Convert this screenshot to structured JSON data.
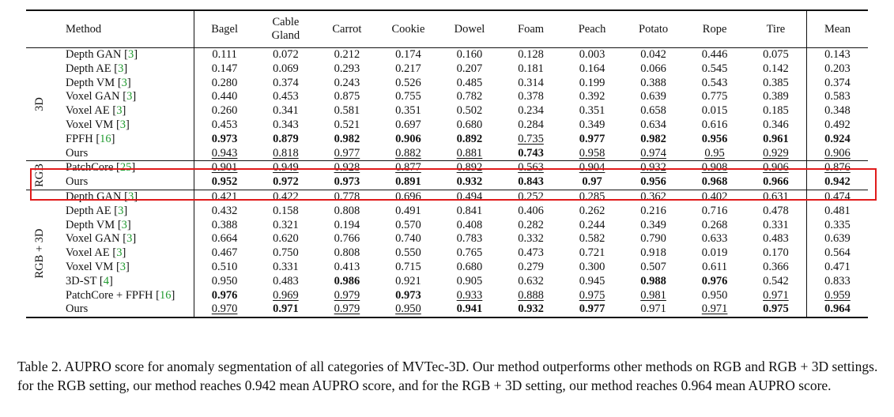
{
  "columns": [
    "Method",
    "Bagel",
    "Cable Gland",
    "Carrot",
    "Cookie",
    "Dowel",
    "Foam",
    "Peach",
    "Potato",
    "Rope",
    "Tire",
    "Mean"
  ],
  "sections": [
    {
      "label": "3D",
      "rows": [
        {
          "method": "Depth GAN",
          "cite": "3",
          "values": [
            {
              "v": "0.111"
            },
            {
              "v": "0.072"
            },
            {
              "v": "0.212"
            },
            {
              "v": "0.174"
            },
            {
              "v": "0.160"
            },
            {
              "v": "0.128"
            },
            {
              "v": "0.003"
            },
            {
              "v": "0.042"
            },
            {
              "v": "0.446"
            },
            {
              "v": "0.075"
            },
            {
              "v": "0.143"
            }
          ]
        },
        {
          "method": "Depth AE",
          "cite": "3",
          "values": [
            {
              "v": "0.147"
            },
            {
              "v": "0.069"
            },
            {
              "v": "0.293"
            },
            {
              "v": "0.217"
            },
            {
              "v": "0.207"
            },
            {
              "v": "0.181"
            },
            {
              "v": "0.164"
            },
            {
              "v": "0.066"
            },
            {
              "v": "0.545"
            },
            {
              "v": "0.142"
            },
            {
              "v": "0.203"
            }
          ]
        },
        {
          "method": "Depth VM",
          "cite": "3",
          "values": [
            {
              "v": "0.280"
            },
            {
              "v": "0.374"
            },
            {
              "v": "0.243"
            },
            {
              "v": "0.526"
            },
            {
              "v": "0.485"
            },
            {
              "v": "0.314"
            },
            {
              "v": "0.199"
            },
            {
              "v": "0.388"
            },
            {
              "v": "0.543"
            },
            {
              "v": "0.385"
            },
            {
              "v": "0.374"
            }
          ]
        },
        {
          "method": "Voxel GAN",
          "cite": "3",
          "values": [
            {
              "v": "0.440"
            },
            {
              "v": "0.453"
            },
            {
              "v": "0.875"
            },
            {
              "v": "0.755"
            },
            {
              "v": "0.782"
            },
            {
              "v": "0.378"
            },
            {
              "v": "0.392"
            },
            {
              "v": "0.639"
            },
            {
              "v": "0.775"
            },
            {
              "v": "0.389"
            },
            {
              "v": "0.583"
            }
          ]
        },
        {
          "method": "Voxel AE",
          "cite": "3",
          "values": [
            {
              "v": "0.260"
            },
            {
              "v": "0.341"
            },
            {
              "v": "0.581"
            },
            {
              "v": "0.351"
            },
            {
              "v": "0.502"
            },
            {
              "v": "0.234"
            },
            {
              "v": "0.351"
            },
            {
              "v": "0.658"
            },
            {
              "v": "0.015"
            },
            {
              "v": "0.185"
            },
            {
              "v": "0.348"
            }
          ]
        },
        {
          "method": "Voxel VM",
          "cite": "3",
          "values": [
            {
              "v": "0.453"
            },
            {
              "v": "0.343"
            },
            {
              "v": "0.521"
            },
            {
              "v": "0.697"
            },
            {
              "v": "0.680"
            },
            {
              "v": "0.284"
            },
            {
              "v": "0.349"
            },
            {
              "v": "0.634"
            },
            {
              "v": "0.616"
            },
            {
              "v": "0.346"
            },
            {
              "v": "0.492"
            }
          ]
        },
        {
          "method": "FPFH",
          "cite": "16",
          "values": [
            {
              "v": "0.973",
              "b": true
            },
            {
              "v": "0.879",
              "b": true
            },
            {
              "v": "0.982",
              "b": true
            },
            {
              "v": "0.906",
              "b": true
            },
            {
              "v": "0.892",
              "b": true
            },
            {
              "v": "0.735",
              "u": true
            },
            {
              "v": "0.977",
              "b": true
            },
            {
              "v": "0.982",
              "b": true
            },
            {
              "v": "0.956",
              "b": true
            },
            {
              "v": "0.961",
              "b": true
            },
            {
              "v": "0.924",
              "b": true
            }
          ]
        },
        {
          "method": "Ours",
          "cite": "",
          "values": [
            {
              "v": "0.943",
              "u": true
            },
            {
              "v": "0.818",
              "u": true
            },
            {
              "v": "0.977",
              "u": true
            },
            {
              "v": "0.882",
              "u": true
            },
            {
              "v": "0.881",
              "u": true
            },
            {
              "v": "0.743",
              "b": true
            },
            {
              "v": "0.958",
              "u": true
            },
            {
              "v": "0.974",
              "u": true
            },
            {
              "v": "0.95",
              "u": true
            },
            {
              "v": "0.929",
              "u": true
            },
            {
              "v": "0.906",
              "u": true
            }
          ]
        }
      ]
    },
    {
      "label": "RGB",
      "rows": [
        {
          "method": "PatchCore",
          "cite": "25",
          "values": [
            {
              "v": "0.901",
              "u": true
            },
            {
              "v": "0.949",
              "u": true
            },
            {
              "v": "0.928",
              "u": true
            },
            {
              "v": "0.877",
              "u": true
            },
            {
              "v": "0.892",
              "u": true
            },
            {
              "v": "0.563",
              "u": true
            },
            {
              "v": "0.904",
              "u": true
            },
            {
              "v": "0.932",
              "u": true
            },
            {
              "v": "0.908",
              "u": true
            },
            {
              "v": "0.906",
              "u": true
            },
            {
              "v": "0.876",
              "u": true
            }
          ]
        },
        {
          "method": "Ours",
          "cite": "",
          "values": [
            {
              "v": "0.952",
              "b": true
            },
            {
              "v": "0.972",
              "b": true
            },
            {
              "v": "0.973",
              "b": true
            },
            {
              "v": "0.891",
              "b": true
            },
            {
              "v": "0.932",
              "b": true
            },
            {
              "v": "0.843",
              "b": true
            },
            {
              "v": "0.97",
              "b": true
            },
            {
              "v": "0.956",
              "b": true
            },
            {
              "v": "0.968",
              "b": true
            },
            {
              "v": "0.966",
              "b": true
            },
            {
              "v": "0.942",
              "b": true
            }
          ]
        }
      ]
    },
    {
      "label": "RGB + 3D",
      "rows": [
        {
          "method": "Depth GAN",
          "cite": "3",
          "values": [
            {
              "v": "0.421"
            },
            {
              "v": "0.422"
            },
            {
              "v": "0.778"
            },
            {
              "v": "0.696"
            },
            {
              "v": "0.494"
            },
            {
              "v": "0.252"
            },
            {
              "v": "0.285"
            },
            {
              "v": "0.362"
            },
            {
              "v": "0.402"
            },
            {
              "v": "0.631"
            },
            {
              "v": "0.474"
            }
          ]
        },
        {
          "method": "Depth AE",
          "cite": "3",
          "values": [
            {
              "v": "0.432"
            },
            {
              "v": "0.158"
            },
            {
              "v": "0.808"
            },
            {
              "v": "0.491"
            },
            {
              "v": "0.841"
            },
            {
              "v": "0.406"
            },
            {
              "v": "0.262"
            },
            {
              "v": "0.216"
            },
            {
              "v": "0.716"
            },
            {
              "v": "0.478"
            },
            {
              "v": "0.481"
            }
          ]
        },
        {
          "method": "Depth VM",
          "cite": "3",
          "values": [
            {
              "v": "0.388"
            },
            {
              "v": "0.321"
            },
            {
              "v": "0.194"
            },
            {
              "v": "0.570"
            },
            {
              "v": "0.408"
            },
            {
              "v": "0.282"
            },
            {
              "v": "0.244"
            },
            {
              "v": "0.349"
            },
            {
              "v": "0.268"
            },
            {
              "v": "0.331"
            },
            {
              "v": "0.335"
            }
          ]
        },
        {
          "method": "Voxel GAN",
          "cite": "3",
          "values": [
            {
              "v": "0.664"
            },
            {
              "v": "0.620"
            },
            {
              "v": "0.766"
            },
            {
              "v": "0.740"
            },
            {
              "v": "0.783"
            },
            {
              "v": "0.332"
            },
            {
              "v": "0.582"
            },
            {
              "v": "0.790"
            },
            {
              "v": "0.633"
            },
            {
              "v": "0.483"
            },
            {
              "v": "0.639"
            }
          ]
        },
        {
          "method": "Voxel AE",
          "cite": "3",
          "values": [
            {
              "v": "0.467"
            },
            {
              "v": "0.750"
            },
            {
              "v": "0.808"
            },
            {
              "v": "0.550"
            },
            {
              "v": "0.765"
            },
            {
              "v": "0.473"
            },
            {
              "v": "0.721"
            },
            {
              "v": "0.918"
            },
            {
              "v": "0.019"
            },
            {
              "v": "0.170"
            },
            {
              "v": "0.564"
            }
          ]
        },
        {
          "method": "Voxel VM",
          "cite": "3",
          "values": [
            {
              "v": "0.510"
            },
            {
              "v": "0.331"
            },
            {
              "v": "0.413"
            },
            {
              "v": "0.715"
            },
            {
              "v": "0.680"
            },
            {
              "v": "0.279"
            },
            {
              "v": "0.300"
            },
            {
              "v": "0.507"
            },
            {
              "v": "0.611"
            },
            {
              "v": "0.366"
            },
            {
              "v": "0.471"
            }
          ]
        },
        {
          "method": "3D-ST",
          "cite": "4",
          "values": [
            {
              "v": "0.950"
            },
            {
              "v": "0.483"
            },
            {
              "v": "0.986",
              "b": true
            },
            {
              "v": "0.921"
            },
            {
              "v": "0.905"
            },
            {
              "v": "0.632"
            },
            {
              "v": "0.945"
            },
            {
              "v": "0.988",
              "b": true
            },
            {
              "v": "0.976",
              "b": true
            },
            {
              "v": "0.542"
            },
            {
              "v": "0.833"
            }
          ]
        },
        {
          "method": "PatchCore + FPFH",
          "cite": "16",
          "values": [
            {
              "v": "0.976",
              "b": true
            },
            {
              "v": "0.969",
              "u": true
            },
            {
              "v": "0.979",
              "u": true
            },
            {
              "v": "0.973",
              "b": true
            },
            {
              "v": "0.933",
              "u": true
            },
            {
              "v": "0.888",
              "u": true
            },
            {
              "v": "0.975",
              "u": true
            },
            {
              "v": "0.981",
              "u": true
            },
            {
              "v": "0.950"
            },
            {
              "v": "0.971",
              "u": true
            },
            {
              "v": "0.959",
              "u": true
            }
          ]
        },
        {
          "method": "Ours",
          "cite": "",
          "values": [
            {
              "v": "0.970",
              "u": true
            },
            {
              "v": "0.971",
              "b": true
            },
            {
              "v": "0.979",
              "u": true
            },
            {
              "v": "0.950",
              "u": true
            },
            {
              "v": "0.941",
              "b": true
            },
            {
              "v": "0.932",
              "b": true
            },
            {
              "v": "0.977",
              "b": true
            },
            {
              "v": "0.971"
            },
            {
              "v": "0.971",
              "u": true
            },
            {
              "v": "0.975",
              "b": true
            },
            {
              "v": "0.964",
              "b": true
            }
          ]
        }
      ]
    }
  ],
  "caption": "Table 2. AUPRO score for anomaly segmentation of all categories of MVTec-3D. Our method outperforms other methods on RGB and RGB + 3D settings. for the RGB setting, our method reaches 0.942 mean AUPRO score, and for the RGB + 3D setting, our method reaches 0.964 mean AUPRO score.",
  "highlight_color": "#e01b1b",
  "citation_color": "#1f9a2e"
}
